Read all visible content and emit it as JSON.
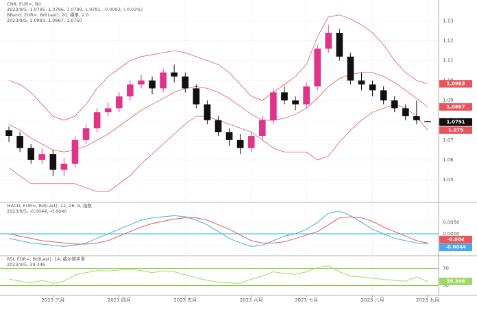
{
  "chart_data": [
    {
      "type": "candlestick",
      "header": [
        {
          "text": "CNB, EUR=, Bd",
          "color": "#333333"
        },
        {
          "text": "2023/9/5, 1.0795, 1.0796, 1.0789, 1.0791, -0.0003, (-0.03%)",
          "color": "#333333"
        },
        {
          "text": "BBand, EUR=, Bd(Last), 20, 標準, 2.0",
          "color": "#e0393e"
        },
        {
          "text": "2023/9/5, 1.0983, 1.0867, 1.0750",
          "color": "#e0393e"
        }
      ],
      "categories": [
        null,
        null,
        null,
        null,
        "2023 三月",
        null,
        null,
        null,
        null,
        null,
        "2023 四月",
        null,
        null,
        null,
        null,
        null,
        "2023 五月",
        null,
        null,
        null,
        null,
        null,
        "2023 六月",
        null,
        null,
        null,
        null,
        "2023 七月",
        null,
        null,
        null,
        null,
        null,
        "2023 八月",
        null,
        null,
        null,
        null,
        "2023 九月"
      ],
      "open": [
        1.075,
        1.072,
        1.066,
        1.06,
        1.063,
        1.055,
        1.058,
        1.07,
        1.076,
        1.084,
        1.086,
        1.092,
        1.098,
        1.1,
        1.096,
        1.104,
        1.102,
        1.096,
        1.088,
        1.08,
        1.074,
        1.07,
        1.066,
        1.072,
        1.08,
        1.094,
        1.09,
        1.088,
        1.097,
        1.116,
        1.124,
        1.112,
        1.1,
        1.098,
        1.095,
        1.09,
        1.086,
        1.082,
        1.0795
      ],
      "high": [
        1.077,
        1.074,
        1.068,
        1.066,
        1.065,
        1.061,
        1.072,
        1.078,
        1.086,
        1.089,
        1.094,
        1.1,
        1.103,
        1.102,
        1.106,
        1.108,
        1.104,
        1.098,
        1.09,
        1.082,
        1.076,
        1.073,
        1.074,
        1.082,
        1.096,
        1.097,
        1.092,
        1.099,
        1.118,
        1.128,
        1.126,
        1.114,
        1.104,
        1.1,
        1.097,
        1.092,
        1.088,
        1.09,
        1.0796
      ],
      "low": [
        1.069,
        1.064,
        1.058,
        1.058,
        1.052,
        1.052,
        1.056,
        1.068,
        1.074,
        1.082,
        1.084,
        1.09,
        1.096,
        1.093,
        1.094,
        1.099,
        1.094,
        1.086,
        1.078,
        1.072,
        1.067,
        1.063,
        1.064,
        1.07,
        1.078,
        1.088,
        1.085,
        1.086,
        1.095,
        1.114,
        1.11,
        1.098,
        1.095,
        1.092,
        1.088,
        1.084,
        1.08,
        1.078,
        1.0789
      ],
      "close": [
        1.072,
        1.066,
        1.06,
        1.063,
        1.055,
        1.058,
        1.07,
        1.076,
        1.084,
        1.086,
        1.092,
        1.098,
        1.1,
        1.096,
        1.104,
        1.102,
        1.096,
        1.088,
        1.08,
        1.074,
        1.07,
        1.066,
        1.072,
        1.08,
        1.094,
        1.09,
        1.088,
        1.097,
        1.116,
        1.124,
        1.112,
        1.1,
        1.098,
        1.095,
        1.09,
        1.086,
        1.082,
        1.08,
        1.0791
      ],
      "up_color": "#e0338a",
      "down_color": "#111111",
      "last_box_color": "#111111",
      "bands": {
        "color": "#e8555a",
        "upper": [
          1.1,
          1.098,
          1.094,
          1.088,
          1.082,
          1.08,
          1.082,
          1.088,
          1.096,
          1.102,
          1.106,
          1.11,
          1.112,
          1.113,
          1.114,
          1.115,
          1.114,
          1.112,
          1.11,
          1.108,
          1.104,
          1.098,
          1.092,
          1.09,
          1.094,
          1.098,
          1.102,
          1.108,
          1.122,
          1.132,
          1.133,
          1.131,
          1.128,
          1.124,
          1.118,
          1.11,
          1.104,
          1.1,
          1.0983
        ],
        "middle": [
          1.078,
          1.075,
          1.071,
          1.068,
          1.065,
          1.064,
          1.065,
          1.067,
          1.07,
          1.073,
          1.077,
          1.081,
          1.085,
          1.088,
          1.091,
          1.094,
          1.096,
          1.097,
          1.096,
          1.094,
          1.091,
          1.087,
          1.083,
          1.08,
          1.08,
          1.081,
          1.083,
          1.086,
          1.091,
          1.097,
          1.101,
          1.103,
          1.104,
          1.104,
          1.102,
          1.099,
          1.095,
          1.091,
          1.0867
        ],
        "lower": [
          1.056,
          1.052,
          1.048,
          1.048,
          1.048,
          1.048,
          1.048,
          1.046,
          1.044,
          1.044,
          1.048,
          1.052,
          1.058,
          1.063,
          1.068,
          1.073,
          1.078,
          1.082,
          1.082,
          1.08,
          1.078,
          1.076,
          1.074,
          1.07,
          1.066,
          1.064,
          1.064,
          1.064,
          1.06,
          1.062,
          1.069,
          1.075,
          1.08,
          1.084,
          1.086,
          1.088,
          1.086,
          1.082,
          1.075
        ]
      },
      "ylim": [
        1.04,
        1.135
      ],
      "yticks": [
        1.05,
        1.06,
        1.07,
        1.08,
        1.09,
        {
          "value": 1.1,
          "label": "1.10"
        },
        1.11,
        1.12,
        1.13
      ],
      "grid": true
    },
    {
      "type": "line",
      "header": [
        {
          "text": "MACD, EUR=, Bd(Last), 12, 26, 9, 指数",
          "color": "#2b8fd9"
        },
        {
          "text": "2023/9/5, -0.0044, -0.0040",
          "color": "#2b8fd9"
        }
      ],
      "series": [
        {
          "color": "#4aa8e8",
          "values": [
            -0.002,
            -0.003,
            -0.004,
            -0.0045,
            -0.005,
            -0.0055,
            -0.005,
            -0.004,
            -0.002,
            0.0,
            0.002,
            0.004,
            0.006,
            0.007,
            0.0075,
            0.008,
            0.0075,
            0.006,
            0.004,
            0.001,
            -0.002,
            -0.004,
            -0.0055,
            -0.005,
            -0.003,
            -0.001,
            0.0,
            0.002,
            0.005,
            0.009,
            0.01,
            0.008,
            0.005,
            0.002,
            0.0,
            -0.002,
            -0.003,
            -0.004,
            -0.0044
          ]
        },
        {
          "color": "#e8555a",
          "values": [
            0.0,
            -0.001,
            -0.002,
            -0.003,
            -0.0035,
            -0.004,
            -0.0045,
            -0.0045,
            -0.004,
            -0.003,
            -0.001,
            0.001,
            0.003,
            0.0045,
            0.0055,
            0.0065,
            0.007,
            0.007,
            0.006,
            0.004,
            0.002,
            -0.0005,
            -0.003,
            -0.004,
            -0.004,
            -0.0035,
            -0.002,
            -0.0005,
            0.001,
            0.004,
            0.007,
            0.0075,
            0.007,
            0.0055,
            0.003,
            0.001,
            -0.001,
            -0.003,
            -0.004
          ]
        }
      ],
      "ylim": [
        -0.009,
        0.012
      ],
      "yticks": [
        {
          "value": -0.005,
          "label": "-0.0050"
        },
        {
          "value": 0,
          "label": "0.0000"
        },
        {
          "value": 0.005,
          "label": "0.0050"
        }
      ],
      "zero_line_color": "#29b6e8",
      "grid": true
    },
    {
      "type": "line",
      "header": [
        {
          "text": "RSI, EUR=, Bd(Last), 14, 威尔德平滑",
          "color": "#6cbf2a"
        },
        {
          "text": "2023/9/5, 39.346",
          "color": "#6cbf2a"
        }
      ],
      "series": [
        {
          "color": "#9fd86a",
          "values": [
            45,
            40,
            36,
            42,
            35,
            40,
            55,
            60,
            65,
            64,
            66,
            68,
            65,
            60,
            64,
            62,
            55,
            48,
            42,
            38,
            36,
            35,
            45,
            52,
            62,
            58,
            56,
            62,
            72,
            76,
            62,
            52,
            50,
            47,
            44,
            42,
            40,
            50,
            39.346
          ]
        }
      ],
      "ylim": [
        10,
        90
      ],
      "yticks": [
        30,
        70
      ],
      "level_color": "#7ccc3a",
      "grid": true
    }
  ]
}
